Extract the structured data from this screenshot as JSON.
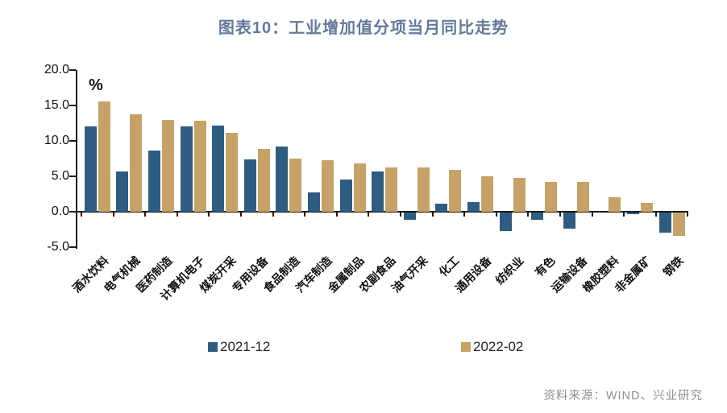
{
  "title": "图表10：工业增加值分项当月同比走势",
  "source": "资料来源：WIND、兴业研究",
  "colors": {
    "series_2021_12": "#2e5c82",
    "series_2022_02": "#c7a266",
    "title_text": "#64799c",
    "axis": "#1a1a1a",
    "source_text": "#8f8f8f"
  },
  "chart_data": {
    "type": "bar",
    "title": "图表10：工业增加值分项当月同比走势",
    "unit_label": "%",
    "categories": [
      "酒水饮料",
      "电气机械",
      "医药制造",
      "计算机电子",
      "煤炭开采",
      "专用设备",
      "食品制造",
      "汽车制造",
      "金属制品",
      "农副食品",
      "油气开采",
      "化工",
      "通用设备",
      "纺织业",
      "有色",
      "运输设备",
      "橡胶塑料",
      "非金属矿",
      "钢铁"
    ],
    "series": [
      {
        "name": "2021-12",
        "color": "#2e5c82",
        "values": [
          12.0,
          5.7,
          8.6,
          12.0,
          12.2,
          7.4,
          9.2,
          2.7,
          4.6,
          5.7,
          -1.0,
          1.1,
          1.4,
          -2.6,
          -1.0,
          -2.3,
          0.0,
          -0.2,
          -2.8
        ]
      },
      {
        "name": "2022-02",
        "color": "#c7a266",
        "values": [
          15.6,
          13.7,
          13.0,
          12.8,
          11.1,
          8.9,
          7.5,
          7.3,
          6.8,
          6.3,
          6.2,
          5.9,
          5.0,
          4.8,
          4.2,
          4.2,
          2.0,
          1.3,
          -3.3
        ]
      }
    ],
    "ylim": [
      -5,
      20
    ],
    "yticks": [
      20,
      15,
      10,
      5,
      0,
      -5
    ],
    "ytick_labels": [
      "20.0",
      "15.0",
      "10.0",
      "5.0",
      "0.0",
      "-5.0"
    ],
    "grid": false,
    "legend_position": "bottom"
  }
}
